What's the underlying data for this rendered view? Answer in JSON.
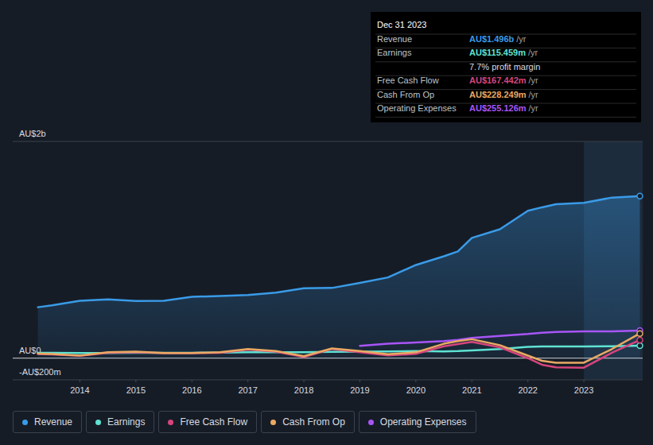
{
  "chart_data": {
    "type": "line",
    "x": [
      2013.25,
      2013.5,
      2014,
      2014.5,
      2015,
      2015.5,
      2016,
      2016.5,
      2017,
      2017.5,
      2018,
      2018.5,
      2019,
      2019.5,
      2020,
      2020.5,
      2020.75,
      2021,
      2021.5,
      2022,
      2022.25,
      2022.5,
      2023,
      2023.5,
      2024
    ],
    "xlim": [
      2012.8,
      2024.05
    ],
    "xticks": [
      2014,
      2015,
      2016,
      2017,
      2018,
      2019,
      2020,
      2021,
      2022,
      2023
    ],
    "ylim": [
      -200,
      2000
    ],
    "yticks": [
      {
        "value": -200,
        "label": "-AU$200m"
      },
      {
        "value": 0,
        "label": "AU$0"
      },
      {
        "value": 2000,
        "label": "AU$2b"
      }
    ],
    "grid": true,
    "legend": "bottom-left",
    "series": [
      {
        "name": "Revenue",
        "color": "#3a9be8",
        "values": [
          470,
          488,
          530,
          542,
          528,
          530,
          566,
          574,
          582,
          605,
          645,
          648,
          695,
          745,
          860,
          940,
          985,
          1110,
          1190,
          1360,
          1392,
          1420,
          1433,
          1482,
          1496
        ]
      },
      {
        "name": "Earnings",
        "color": "#5fe3d3",
        "values": [
          50,
          50,
          48,
          48,
          50,
          50,
          50,
          52,
          55,
          55,
          55,
          58,
          60,
          62,
          66,
          62,
          65,
          72,
          85,
          105,
          108,
          108,
          108,
          110,
          115
        ]
      },
      {
        "name": "Free Cash Flow",
        "color": "#d6457c",
        "values": [
          38,
          35,
          22,
          50,
          55,
          45,
          45,
          50,
          78,
          60,
          10,
          85,
          55,
          25,
          40,
          110,
          130,
          150,
          100,
          0,
          -60,
          -85,
          -88,
          50,
          167
        ]
      },
      {
        "name": "Cash From Op",
        "color": "#e9a963",
        "values": [
          42,
          38,
          24,
          54,
          60,
          48,
          48,
          54,
          84,
          66,
          18,
          90,
          66,
          36,
          54,
          133,
          157,
          175,
          120,
          24,
          -24,
          -42,
          -42,
          84,
          228
        ]
      },
      {
        "name": "Operating Expenses",
        "color": "#a855f7",
        "values": [
          null,
          null,
          null,
          null,
          null,
          null,
          null,
          null,
          null,
          null,
          null,
          null,
          114,
          133,
          145,
          157,
          169,
          187,
          205,
          223,
          235,
          241,
          247,
          247,
          255
        ]
      }
    ],
    "annotations": {
      "title": "Dec 31 2023",
      "rows": [
        {
          "label": "Revenue",
          "value": "AU$1.496b",
          "unit": "/yr"
        },
        {
          "label": "Earnings",
          "value": "AU$115.459m",
          "unit": "/yr"
        },
        {
          "label": "Free Cash Flow",
          "value": "AU$167.442m",
          "unit": "/yr"
        },
        {
          "label": "Cash From Op",
          "value": "AU$228.249m",
          "unit": "/yr"
        },
        {
          "label": "Operating Expenses",
          "value": "AU$255.126m",
          "unit": "/yr"
        }
      ],
      "margin": "7.7% profit margin"
    }
  }
}
